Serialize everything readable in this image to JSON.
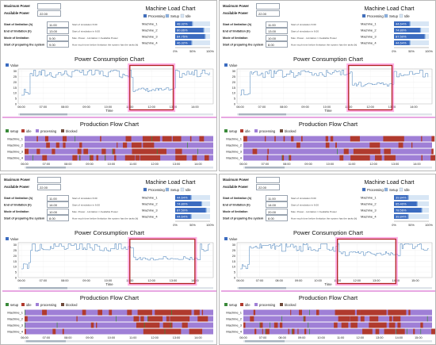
{
  "panels": [
    {
      "params": {
        "max_power_label": "Maximum Power",
        "max_power_value": "",
        "available_power_label": "Available Power",
        "available_power_value": "22.00"
      },
      "rows": [
        {
          "label": "Start of limitation (h)",
          "value": "11.00",
          "note": "Start of simulation 6:00"
        },
        {
          "label": "End of limitation (h)",
          "value": "13.00",
          "note": "Start of simulation in 6:00"
        },
        {
          "label": "Mode of limitation",
          "value": "5.00",
          "note": "Max. Power - Limitation = Available Power"
        },
        {
          "label": "Start of preparing the system",
          "value": "9.00",
          "note": "How much time before limitation the system has the tasks [h]"
        }
      ],
      "machine_load": {
        "title": "Machine Load Chart",
        "legend": [
          "Processing",
          "Setup",
          "Idle"
        ],
        "machines": [
          {
            "name": "Machine_1",
            "percent": "48.32%",
            "processing": 0.4832
          },
          {
            "name": "Machine_2",
            "percent": "80.86%",
            "processing": 0.8086
          },
          {
            "name": "Machine_3",
            "percent": "84.75%",
            "processing": 0.8475
          },
          {
            "name": "Machine_4",
            "percent": "46.32%",
            "processing": 0.4632
          }
        ],
        "axis_ticks": [
          "0%",
          "50%",
          "100%"
        ]
      },
      "power_chart": {
        "title": "Power Consumption Chart",
        "legend": "Value",
        "y_ticks": [
          "30",
          "25",
          "20",
          "15",
          "10",
          "5",
          "0"
        ],
        "x_ticks": [
          "06:00",
          "07:00",
          "08:00",
          "09:00",
          "10:00",
          "11:00",
          "12:00",
          "13:00",
          "14:00"
        ],
        "x_label": "Time",
        "limitation_highlight": {
          "start_hour": 11.0,
          "end_hour": 13.0
        }
      },
      "flow_chart": {
        "title": "Production Flow Chart",
        "legend": [
          "setup",
          "idle",
          "processing",
          "blocked"
        ],
        "machines": [
          "Machine_1",
          "Machine_2",
          "Machine_3",
          "Machine_4"
        ],
        "x_ticks": [
          "06:00",
          "07:00",
          "08:00",
          "09:00",
          "10:00",
          "11:00",
          "12:00",
          "13:00",
          "14:00"
        ]
      }
    },
    {
      "params": {
        "max_power_label": "Maximum Power",
        "max_power_value": "",
        "available_power_label": "Available Power",
        "available_power_value": "22.00"
      },
      "rows": [
        {
          "label": "Start of limitation (h)",
          "value": "11.00",
          "note": "Start of simulation 6:00"
        },
        {
          "label": "End of limitation (h)",
          "value": "13.00",
          "note": "Start of simulation in 6:00"
        },
        {
          "label": "Mode of limitation",
          "value": "10.00",
          "note": "Max. Power - Limitation = Available Power"
        },
        {
          "label": "Start of preparing the system",
          "value": "8.00",
          "note": "How much time before limitation the system has the tasks [h]"
        }
      ],
      "machine_load": {
        "title": "Machine Load Chart",
        "legend": [
          "Processing",
          "Setup",
          "Idle"
        ],
        "machines": [
          {
            "name": "Machine_1",
            "percent": "44.64%",
            "processing": 0.4464
          },
          {
            "name": "Machine_2",
            "percent": "74.80%",
            "processing": 0.748
          },
          {
            "name": "Machine_3",
            "percent": "87.50%",
            "processing": 0.875
          },
          {
            "name": "Machine_4",
            "percent": "44.64%",
            "processing": 0.4464
          }
        ],
        "axis_ticks": [
          "0%",
          "50%",
          "100%"
        ]
      },
      "power_chart": {
        "title": "Power Consumption Chart",
        "legend": "Value",
        "y_ticks": [
          "30",
          "25",
          "20",
          "15",
          "10",
          "5",
          "0"
        ],
        "x_ticks": [
          "06:00",
          "07:00",
          "08:00",
          "09:00",
          "10:00",
          "11:00",
          "12:00",
          "13:00",
          "14:00"
        ],
        "x_label": "Time",
        "limitation_highlight": {
          "start_hour": 11.0,
          "end_hour": 13.0
        }
      },
      "flow_chart": {
        "title": "Production Flow Chart",
        "legend": [
          "setup",
          "idle",
          "processing",
          "blocked"
        ],
        "machines": [
          "Machine_1",
          "Machine_2",
          "Machine_3",
          "Machine_4"
        ],
        "x_ticks": [
          "06:00",
          "07:00",
          "08:00",
          "09:00",
          "10:00",
          "11:00",
          "12:00",
          "13:00",
          "14:00"
        ]
      }
    },
    {
      "params": {
        "max_power_label": "Maximum Power",
        "max_power_value": "",
        "available_power_label": "Available Power",
        "available_power_value": "22.00"
      },
      "rows": [
        {
          "label": "Start of limitation (h)",
          "value": "11.00",
          "note": "Start of simulation 6:00"
        },
        {
          "label": "End of limitation (h)",
          "value": "14.00",
          "note": "Start of simulation in 6:00"
        },
        {
          "label": "Mode of limitation",
          "value": "10.00",
          "note": "Max. Power - Limitation = Available Power"
        },
        {
          "label": "Start of preparing the system",
          "value": "8.00",
          "note": "How much time before limitation the system has the tasks [h]"
        }
      ],
      "machine_load": {
        "title": "Machine Load Chart",
        "legend": [
          "Processing",
          "Setup",
          "Idle"
        ],
        "machines": [
          {
            "name": "Machine_1",
            "percent": "44.64%",
            "processing": 0.4464
          },
          {
            "name": "Machine_2",
            "percent": "74.80%",
            "processing": 0.748
          },
          {
            "name": "Machine_3",
            "percent": "87.50%",
            "processing": 0.875
          },
          {
            "name": "Machine_4",
            "percent": "44.64%",
            "processing": 0.4464
          }
        ],
        "axis_ticks": [
          "0%",
          "50%",
          "100%"
        ]
      },
      "power_chart": {
        "title": "Power Consumption Chart",
        "legend": "Value",
        "y_ticks": [
          "30",
          "25",
          "20",
          "15",
          "10",
          "5",
          "0"
        ],
        "x_ticks": [
          "06:00",
          "07:00",
          "08:00",
          "09:00",
          "10:00",
          "11:00",
          "12:00",
          "13:00",
          "14:00"
        ],
        "x_label": "Time",
        "limitation_highlight": {
          "start_hour": 11.0,
          "end_hour": 14.0
        }
      },
      "flow_chart": {
        "title": "Production Flow Chart",
        "legend": [
          "setup",
          "idle",
          "processing",
          "blocked"
        ],
        "machines": [
          "Machine_1",
          "Machine_2",
          "Machine_3",
          "Machine_4"
        ],
        "x_ticks": [
          "06:00",
          "07:00",
          "08:00",
          "09:00",
          "10:00",
          "11:00",
          "12:00",
          "13:00",
          "14:00"
        ]
      }
    },
    {
      "params": {
        "max_power_label": "Maximum Power",
        "max_power_value": "",
        "available_power_label": "Available Power",
        "available_power_value": "22.00"
      },
      "rows": [
        {
          "label": "Start of limitation (h)",
          "value": "11.00",
          "note": "Start of simulation 6:00"
        },
        {
          "label": "End of limitation (h)",
          "value": "14.00",
          "note": "Start of simulation in 6:00"
        },
        {
          "label": "Mode of limitation",
          "value": "20.00",
          "note": "Max. Power - Limitation = Available Power"
        },
        {
          "label": "Start of preparing the system",
          "value": "8.00",
          "note": "How much time before limitation the system has the tasks [h]"
        }
      ],
      "machine_load": {
        "title": "Machine Load Chart",
        "legend": [
          "Processing",
          "Setup",
          "Idle"
        ],
        "machines": [
          {
            "name": "Machine_1",
            "percent": "39.84%",
            "processing": 0.3984
          },
          {
            "name": "Machine_2",
            "percent": "65.40%",
            "processing": 0.654
          },
          {
            "name": "Machine_3",
            "percent": "78.56%",
            "processing": 0.7856
          },
          {
            "name": "Machine_4",
            "percent": "39.84%",
            "processing": 0.3984
          }
        ],
        "axis_ticks": [
          "0%",
          "50%",
          "100%"
        ]
      },
      "power_chart": {
        "title": "Power Consumption Chart",
        "legend": "Value",
        "y_ticks": [
          "30",
          "25",
          "20",
          "15",
          "10",
          "5",
          "0"
        ],
        "x_ticks": [
          "06:00",
          "07:00",
          "08:00",
          "09:00",
          "10:00",
          "11:00",
          "12:00",
          "13:00",
          "14:00",
          "15:00"
        ],
        "x_label": "Time",
        "limitation_highlight": {
          "start_hour": 11.0,
          "end_hour": 14.0
        }
      },
      "flow_chart": {
        "title": "Production Flow Chart",
        "legend": [
          "setup",
          "idle",
          "processing",
          "blocked"
        ],
        "machines": [
          "Machine_1",
          "Machine_2",
          "Machine_3",
          "Machine_4"
        ],
        "x_ticks": [
          "06:00",
          "07:00",
          "08:00",
          "09:00",
          "10:00",
          "11:00",
          "12:00",
          "13:00",
          "14:00",
          "15:00"
        ]
      }
    }
  ],
  "colors": {
    "processing": "#9f7fd6",
    "idle": "#b03a2e",
    "setup": "#3a8a3a",
    "blocked": "#6e4a3a",
    "load_processing": "#3c6cc0",
    "load_setup": "#8ab0e0",
    "load_idle": "#d8e6f5",
    "power_line": "#2a6db0",
    "highlight_box": "#b02020",
    "highlight_glow": "#ff6fd0",
    "separator": "#e08ad8"
  }
}
